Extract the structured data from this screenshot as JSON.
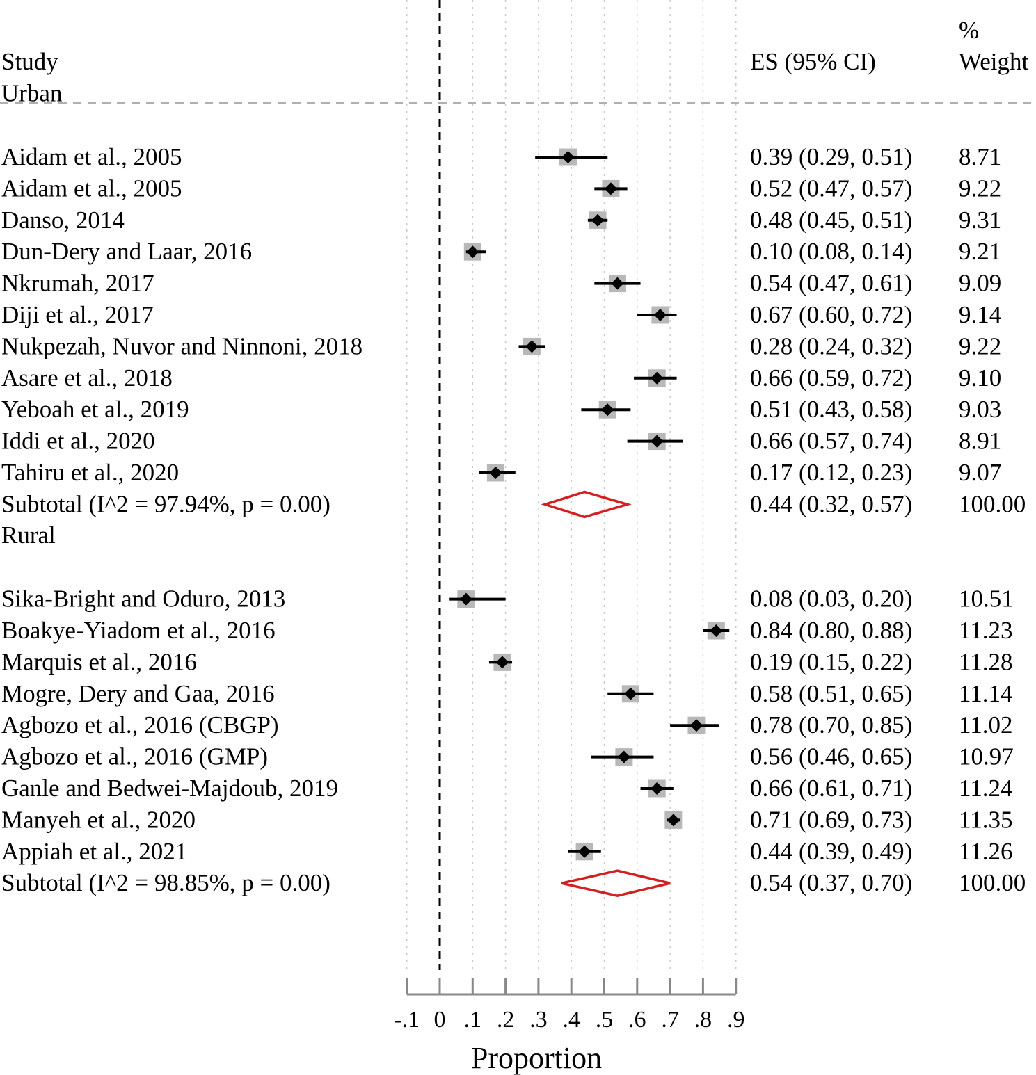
{
  "chart_data": {
    "type": "forest",
    "xlabel": "Proportion",
    "xlim": [
      -0.1,
      0.9
    ],
    "x_ticks": [
      {
        "value": -0.1,
        "label": "-.1"
      },
      {
        "value": 0,
        "label": "0"
      },
      {
        "value": 0.1,
        "label": ".1"
      },
      {
        "value": 0.2,
        "label": ".2"
      },
      {
        "value": 0.3,
        "label": ".3"
      },
      {
        "value": 0.4,
        "label": ".4"
      },
      {
        "value": 0.5,
        "label": ".5"
      },
      {
        "value": 0.6,
        "label": ".6"
      },
      {
        "value": 0.7,
        "label": ".7"
      },
      {
        "value": 0.8,
        "label": ".8"
      },
      {
        "value": 0.9,
        "label": ".9"
      }
    ],
    "reference_line": 0,
    "grid": true,
    "headers": {
      "study": "Study",
      "es": "ES (95% CI)",
      "weight_line1": "%",
      "weight_line2": "Weight"
    },
    "groups": [
      {
        "name": "Urban",
        "studies": [
          {
            "label": "Aidam et al., 2005",
            "es": 0.39,
            "lo": 0.29,
            "hi": 0.51,
            "es_text": "0.39 (0.29, 0.51)",
            "weight": "8.71"
          },
          {
            "label": "Aidam et al., 2005",
            "es": 0.52,
            "lo": 0.47,
            "hi": 0.57,
            "es_text": "0.52 (0.47, 0.57)",
            "weight": "9.22"
          },
          {
            "label": "Danso, 2014",
            "es": 0.48,
            "lo": 0.45,
            "hi": 0.51,
            "es_text": "0.48 (0.45, 0.51)",
            "weight": "9.31"
          },
          {
            "label": "Dun-Dery and Laar, 2016",
            "es": 0.1,
            "lo": 0.08,
            "hi": 0.14,
            "es_text": "0.10 (0.08, 0.14)",
            "weight": "9.21"
          },
          {
            "label": "Nkrumah, 2017",
            "es": 0.54,
            "lo": 0.47,
            "hi": 0.61,
            "es_text": "0.54 (0.47, 0.61)",
            "weight": "9.09"
          },
          {
            "label": "Diji et al., 2017",
            "es": 0.67,
            "lo": 0.6,
            "hi": 0.72,
            "es_text": "0.67 (0.60, 0.72)",
            "weight": "9.14"
          },
          {
            "label": "Nukpezah, Nuvor and Ninnoni, 2018",
            "es": 0.28,
            "lo": 0.24,
            "hi": 0.32,
            "es_text": "0.28 (0.24, 0.32)",
            "weight": "9.22"
          },
          {
            "label": "Asare et al., 2018",
            "es": 0.66,
            "lo": 0.59,
            "hi": 0.72,
            "es_text": "0.66 (0.59, 0.72)",
            "weight": "9.10"
          },
          {
            "label": "Yeboah et al., 2019",
            "es": 0.51,
            "lo": 0.43,
            "hi": 0.58,
            "es_text": "0.51 (0.43, 0.58)",
            "weight": "9.03"
          },
          {
            "label": "Iddi et al., 2020",
            "es": 0.66,
            "lo": 0.57,
            "hi": 0.74,
            "es_text": "0.66 (0.57, 0.74)",
            "weight": "8.91"
          },
          {
            "label": "Tahiru et al., 2020",
            "es": 0.17,
            "lo": 0.12,
            "hi": 0.23,
            "es_text": "0.17 (0.12, 0.23)",
            "weight": "9.07"
          }
        ],
        "subtotal": {
          "label": "Subtotal  (I^2 = 97.94%, p = 0.00)",
          "es": 0.44,
          "lo": 0.32,
          "hi": 0.57,
          "es_text": "0.44 (0.32, 0.57)",
          "weight": "100.00"
        }
      },
      {
        "name": "Rural",
        "studies": [
          {
            "label": "Sika-Bright and Oduro, 2013",
            "es": 0.08,
            "lo": 0.03,
            "hi": 0.2,
            "es_text": "0.08 (0.03, 0.20)",
            "weight": "10.51"
          },
          {
            "label": "Boakye-Yiadom et al., 2016",
            "es": 0.84,
            "lo": 0.8,
            "hi": 0.88,
            "es_text": "0.84 (0.80, 0.88)",
            "weight": "11.23"
          },
          {
            "label": "Marquis et al., 2016",
            "es": 0.19,
            "lo": 0.15,
            "hi": 0.22,
            "es_text": "0.19 (0.15, 0.22)",
            "weight": "11.28"
          },
          {
            "label": "Mogre, Dery and Gaa, 2016",
            "es": 0.58,
            "lo": 0.51,
            "hi": 0.65,
            "es_text": "0.58 (0.51, 0.65)",
            "weight": "11.14"
          },
          {
            "label": "Agbozo et al., 2016 (CBGP)",
            "es": 0.78,
            "lo": 0.7,
            "hi": 0.85,
            "es_text": "0.78 (0.70, 0.85)",
            "weight": "11.02"
          },
          {
            "label": "Agbozo et al., 2016 (GMP)",
            "es": 0.56,
            "lo": 0.46,
            "hi": 0.65,
            "es_text": "0.56 (0.46, 0.65)",
            "weight": "10.97"
          },
          {
            "label": "Ganle and Bedwei-Majdoub, 2019",
            "es": 0.66,
            "lo": 0.61,
            "hi": 0.71,
            "es_text": "0.66 (0.61, 0.71)",
            "weight": "11.24"
          },
          {
            "label": "Manyeh et al., 2020",
            "es": 0.71,
            "lo": 0.69,
            "hi": 0.73,
            "es_text": "0.71 (0.69, 0.73)",
            "weight": "11.35"
          },
          {
            "label": "Appiah et al., 2021",
            "es": 0.44,
            "lo": 0.39,
            "hi": 0.49,
            "es_text": "0.44 (0.39, 0.49)",
            "weight": "11.26"
          }
        ],
        "subtotal": {
          "label": "Subtotal  (I^2 = 98.85%, p = 0.00)",
          "es": 0.54,
          "lo": 0.37,
          "hi": 0.7,
          "es_text": "0.54 (0.37, 0.70)",
          "weight": "100.00"
        }
      }
    ],
    "colors": {
      "marker": "#000000",
      "weight_box": "#b8b8b8",
      "subtotal_diamond": "#d42020",
      "grid": "#c8c8c8",
      "header_rule": "#b0b0b0",
      "axis": "#888888"
    }
  }
}
